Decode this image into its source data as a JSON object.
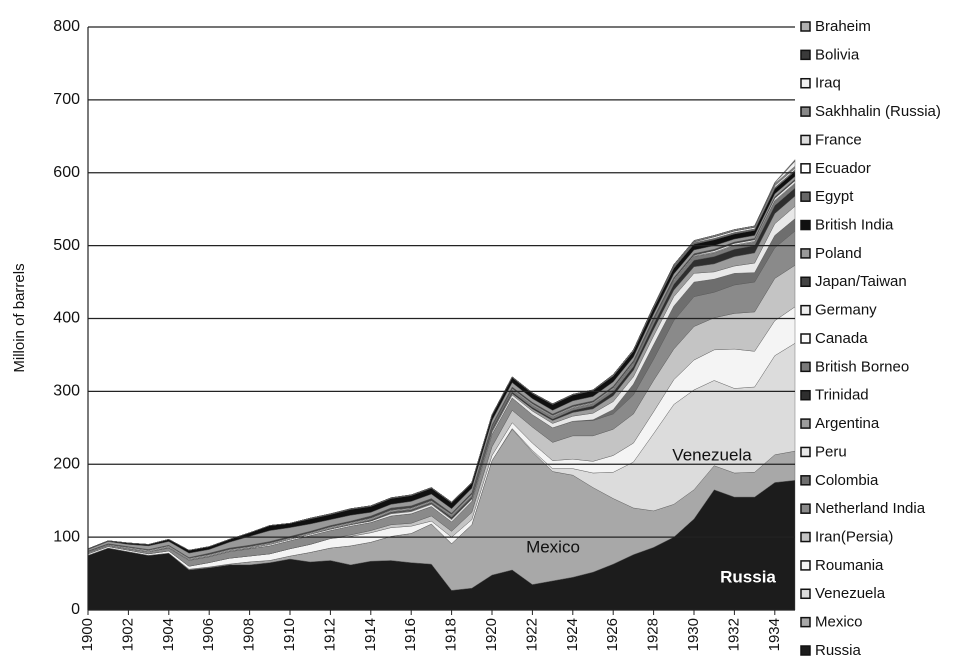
{
  "chart_data": {
    "type": "stacked-area",
    "y_label": "Milloin of barrels",
    "x": [
      1900,
      1901,
      1902,
      1903,
      1904,
      1905,
      1906,
      1907,
      1908,
      1909,
      1910,
      1911,
      1912,
      1913,
      1914,
      1915,
      1916,
      1917,
      1918,
      1919,
      1920,
      1921,
      1922,
      1923,
      1924,
      1925,
      1926,
      1927,
      1928,
      1929,
      1930,
      1931,
      1932,
      1933,
      1934,
      1935
    ],
    "xlim": [
      1900,
      1935
    ],
    "xticks": [
      1900,
      1902,
      1904,
      1906,
      1908,
      1910,
      1912,
      1914,
      1916,
      1918,
      1920,
      1922,
      1924,
      1926,
      1928,
      1930,
      1932,
      1934
    ],
    "ylim": [
      0,
      800
    ],
    "yticks": [
      0,
      100,
      200,
      300,
      400,
      500,
      600,
      700,
      800
    ],
    "grid": true,
    "legend": "right",
    "annotations": [
      "Russia",
      "Mexico",
      "Venezuela"
    ],
    "series": [
      {
        "name": "Russia",
        "color": "#1c1c1c",
        "values": [
          75,
          85,
          80,
          75,
          78,
          55,
          58,
          62,
          62,
          65,
          70,
          66,
          68,
          62,
          67,
          68,
          65,
          63,
          27,
          30,
          48,
          55,
          35,
          40,
          45,
          52,
          63,
          76,
          86,
          100,
          125,
          165,
          155,
          155,
          175,
          178
        ]
      },
      {
        "name": "Mexico",
        "color": "#a8a8a8",
        "values": [
          0,
          0,
          0,
          0,
          0,
          1,
          1,
          1,
          4,
          3,
          4,
          13,
          17,
          26,
          26,
          33,
          40,
          55,
          64,
          87,
          157,
          193,
          182,
          150,
          140,
          116,
          90,
          64,
          50,
          45,
          40,
          33,
          33,
          34,
          38,
          40
        ]
      },
      {
        "name": "Venezuela",
        "color": "#dcdcdc",
        "values": [
          0,
          0,
          0,
          0,
          0,
          0,
          0,
          0,
          0,
          0,
          0,
          0,
          0,
          0,
          0,
          0,
          0,
          0,
          0,
          0,
          0,
          1,
          2,
          4,
          9,
          20,
          36,
          63,
          106,
          137,
          137,
          117,
          116,
          117,
          136,
          148
        ]
      },
      {
        "name": "Roumania",
        "color": "#f4f4f4",
        "values": [
          2,
          2,
          2,
          2,
          3,
          4,
          6,
          8,
          8,
          9,
          10,
          11,
          13,
          13,
          13,
          12,
          10,
          4,
          9,
          7,
          7,
          8,
          10,
          11,
          13,
          16,
          23,
          26,
          30,
          34,
          41,
          42,
          54,
          49,
          48,
          50
        ]
      },
      {
        "name": "Iran(Persia)",
        "color": "#c4c4c4",
        "values": [
          0,
          0,
          0,
          0,
          0,
          0,
          0,
          0,
          0,
          0,
          0,
          0,
          0,
          2,
          3,
          4,
          4,
          7,
          8,
          10,
          12,
          17,
          22,
          25,
          32,
          35,
          36,
          40,
          43,
          42,
          46,
          44,
          49,
          54,
          58,
          57
        ]
      },
      {
        "name": "Netherland India",
        "color": "#8a8a8a",
        "values": [
          2,
          2,
          2,
          3,
          4,
          8,
          8,
          9,
          10,
          11,
          11,
          12,
          11,
          12,
          11,
          12,
          13,
          13,
          13,
          15,
          17,
          17,
          17,
          20,
          20,
          21,
          21,
          26,
          29,
          39,
          41,
          35,
          39,
          41,
          42,
          47
        ]
      },
      {
        "name": "Colombia",
        "color": "#6e6e6e",
        "values": [
          0,
          0,
          0,
          0,
          0,
          0,
          0,
          0,
          0,
          0,
          0,
          0,
          0,
          0,
          0,
          0,
          0,
          0,
          0,
          0,
          0,
          0,
          0,
          0,
          0,
          1,
          6,
          15,
          20,
          20,
          20,
          18,
          16,
          13,
          17,
          17
        ]
      },
      {
        "name": "Peru",
        "color": "#e8e8e8",
        "values": [
          0,
          0,
          0,
          0,
          1,
          1,
          1,
          1,
          1,
          2,
          2,
          2,
          2,
          2,
          2,
          3,
          3,
          3,
          3,
          3,
          3,
          4,
          5,
          6,
          7,
          9,
          11,
          10,
          12,
          13,
          12,
          10,
          10,
          13,
          16,
          17
        ]
      },
      {
        "name": "Argentina",
        "color": "#9c9c9c",
        "values": [
          0,
          0,
          0,
          0,
          0,
          0,
          0,
          0,
          0,
          0,
          0,
          0,
          0,
          0,
          0,
          1,
          1,
          1,
          1,
          1,
          2,
          2,
          3,
          4,
          5,
          6,
          8,
          9,
          9,
          9,
          9,
          11,
          13,
          14,
          14,
          14
        ]
      },
      {
        "name": "Trinidad",
        "color": "#2e2e2e",
        "values": [
          0,
          0,
          0,
          0,
          0,
          0,
          0,
          0,
          0,
          0,
          0,
          0,
          0,
          0,
          1,
          1,
          1,
          1,
          2,
          2,
          2,
          2,
          2,
          2,
          3,
          4,
          5,
          5,
          7,
          8,
          9,
          10,
          10,
          10,
          11,
          11
        ]
      },
      {
        "name": "British Borneo",
        "color": "#7a7a7a",
        "values": [
          0,
          0,
          0,
          0,
          0,
          0,
          0,
          0,
          0,
          0,
          0,
          0,
          1,
          1,
          1,
          1,
          1,
          1,
          2,
          2,
          2,
          3,
          3,
          3,
          3,
          3,
          4,
          4,
          5,
          5,
          5,
          5,
          5,
          5,
          6,
          6
        ]
      },
      {
        "name": "Canada",
        "color": "#fafafa",
        "values": [
          1,
          1,
          1,
          1,
          1,
          1,
          1,
          1,
          1,
          1,
          1,
          1,
          1,
          1,
          1,
          1,
          1,
          1,
          1,
          1,
          1,
          1,
          1,
          1,
          1,
          1,
          1,
          1,
          1,
          1,
          1,
          1,
          1,
          1,
          1,
          1
        ]
      },
      {
        "name": "Germany",
        "color": "#eeeeee",
        "values": [
          0,
          0,
          1,
          1,
          1,
          1,
          1,
          1,
          1,
          1,
          1,
          1,
          1,
          1,
          1,
          1,
          1,
          1,
          1,
          1,
          1,
          1,
          1,
          1,
          1,
          1,
          1,
          1,
          1,
          1,
          1,
          2,
          2,
          2,
          3,
          3
        ]
      },
      {
        "name": "Japan/Taiwan",
        "color": "#444444",
        "values": [
          1,
          1,
          1,
          1,
          1,
          1,
          2,
          2,
          2,
          2,
          2,
          2,
          2,
          2,
          3,
          3,
          3,
          3,
          2,
          2,
          2,
          2,
          2,
          2,
          2,
          2,
          2,
          2,
          2,
          2,
          2,
          2,
          2,
          2,
          2,
          2
        ]
      },
      {
        "name": "Poland",
        "color": "#999999",
        "values": [
          2,
          3,
          3,
          5,
          5,
          6,
          5,
          8,
          12,
          15,
          12,
          10,
          8,
          8,
          5,
          5,
          6,
          6,
          6,
          6,
          6,
          6,
          5,
          5,
          6,
          6,
          6,
          5,
          5,
          5,
          5,
          5,
          4,
          4,
          4,
          4
        ]
      },
      {
        "name": "British India",
        "color": "#101010",
        "values": [
          1,
          1,
          2,
          2,
          3,
          4,
          4,
          4,
          5,
          7,
          6,
          7,
          7,
          8,
          8,
          8,
          8,
          8,
          8,
          7,
          7,
          7,
          7,
          8,
          8,
          8,
          8,
          8,
          8,
          8,
          8,
          8,
          7,
          7,
          7,
          7
        ]
      },
      {
        "name": "Egypt",
        "color": "#666666",
        "values": [
          0,
          0,
          0,
          0,
          0,
          0,
          0,
          0,
          0,
          0,
          0,
          1,
          1,
          1,
          1,
          1,
          1,
          1,
          1,
          1,
          1,
          1,
          1,
          1,
          1,
          1,
          1,
          1,
          2,
          2,
          2,
          2,
          2,
          2,
          2,
          2
        ]
      },
      {
        "name": "Ecuador",
        "color": "#ffffff",
        "values": [
          0,
          0,
          0,
          0,
          0,
          0,
          0,
          0,
          0,
          0,
          0,
          0,
          0,
          0,
          0,
          0,
          0,
          0,
          0,
          0,
          0,
          0,
          0,
          0,
          0,
          0,
          1,
          1,
          1,
          1,
          1,
          2,
          2,
          2,
          2,
          2
        ]
      },
      {
        "name": "France",
        "color": "#dddddd",
        "values": [
          0,
          0,
          0,
          0,
          0,
          0,
          0,
          0,
          0,
          0,
          0,
          0,
          0,
          0,
          0,
          0,
          0,
          0,
          0,
          0,
          0,
          0,
          0,
          0,
          0,
          0,
          0,
          0,
          0,
          0,
          0,
          0,
          0,
          0,
          1,
          1
        ]
      },
      {
        "name": "Sakhhalin (Russia)",
        "color": "#888888",
        "values": [
          0,
          0,
          0,
          0,
          0,
          0,
          0,
          0,
          0,
          0,
          0,
          0,
          0,
          0,
          0,
          0,
          0,
          0,
          0,
          0,
          0,
          0,
          0,
          0,
          0,
          0,
          0,
          0,
          0,
          1,
          1,
          1,
          1,
          1,
          2,
          2
        ]
      },
      {
        "name": "Iraq",
        "color": "#f0f0f0",
        "values": [
          0,
          0,
          0,
          0,
          0,
          0,
          0,
          0,
          0,
          0,
          0,
          0,
          0,
          0,
          0,
          0,
          0,
          0,
          0,
          0,
          0,
          0,
          0,
          0,
          0,
          0,
          0,
          0,
          0,
          1,
          1,
          1,
          1,
          1,
          1,
          7
        ]
      },
      {
        "name": "Bolivia",
        "color": "#3a3a3a",
        "values": [
          0,
          0,
          0,
          0,
          0,
          0,
          0,
          0,
          0,
          0,
          0,
          0,
          0,
          0,
          0,
          0,
          0,
          0,
          0,
          0,
          0,
          0,
          0,
          0,
          0,
          0,
          0,
          0,
          0,
          0,
          0,
          0,
          0,
          0,
          0,
          1
        ]
      },
      {
        "name": "Braheim",
        "color": "#b0b0b0",
        "values": [
          0,
          0,
          0,
          0,
          0,
          0,
          0,
          0,
          0,
          0,
          0,
          0,
          0,
          0,
          0,
          0,
          0,
          0,
          0,
          0,
          0,
          0,
          0,
          0,
          0,
          0,
          0,
          0,
          0,
          0,
          0,
          0,
          0,
          0,
          1,
          1
        ]
      }
    ]
  }
}
